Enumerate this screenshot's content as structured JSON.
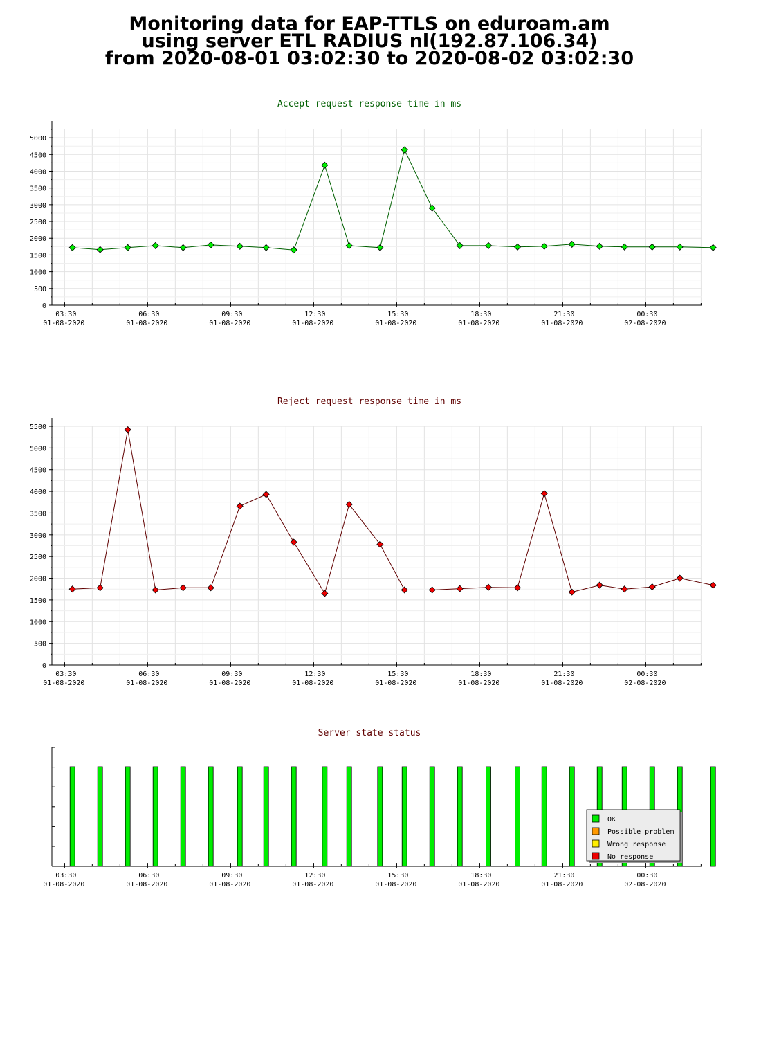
{
  "page_title": {
    "line1": "Monitoring data for EAP-TTLS on eduroam.am",
    "line2": "using server ETL RADIUS nl(192.87.106.34)",
    "line3": "from 2020-08-01 03:02:30 to 2020-08-02 03:02:30"
  },
  "x_axis": {
    "ticks": [
      {
        "time": "03:30",
        "date": "01-08-2020"
      },
      {
        "time": "06:30",
        "date": "01-08-2020"
      },
      {
        "time": "09:30",
        "date": "01-08-2020"
      },
      {
        "time": "12:30",
        "date": "01-08-2020"
      },
      {
        "time": "15:30",
        "date": "01-08-2020"
      },
      {
        "time": "18:30",
        "date": "01-08-2020"
      },
      {
        "time": "21:30",
        "date": "01-08-2020"
      },
      {
        "time": "00:30",
        "date": "02-08-2020"
      }
    ]
  },
  "chart_data": [
    {
      "type": "line",
      "title": "Accept request response time in ms",
      "ylim": [
        0,
        5250
      ],
      "yticks": [
        0,
        500,
        1000,
        1500,
        2000,
        2500,
        3000,
        3500,
        4000,
        4500,
        5000
      ],
      "grid": true,
      "line_color": "#006000",
      "marker_color": "#00ee00",
      "title_color": "#005f00",
      "x": [
        "2020-08-01 03:47",
        "2020-08-01 04:47",
        "2020-08-01 05:47",
        "2020-08-01 06:47",
        "2020-08-01 07:47",
        "2020-08-01 08:47",
        "2020-08-01 09:50",
        "2020-08-01 10:47",
        "2020-08-01 11:47",
        "2020-08-01 12:54",
        "2020-08-01 13:47",
        "2020-08-01 14:54",
        "2020-08-01 15:47",
        "2020-08-01 16:47",
        "2020-08-01 17:47",
        "2020-08-01 18:49",
        "2020-08-01 19:52",
        "2020-08-01 20:50",
        "2020-08-01 21:50",
        "2020-08-01 22:50",
        "2020-08-01 23:44",
        "2020-08-02 00:44",
        "2020-08-02 01:44",
        "2020-08-02 02:56"
      ],
      "values": [
        1720,
        1660,
        1720,
        1780,
        1720,
        1800,
        1760,
        1720,
        1650,
        4180,
        1780,
        1720,
        4640,
        2900,
        1780,
        1780,
        1740,
        1760,
        1820,
        1760,
        1740,
        1740,
        1740,
        1720
      ]
    },
    {
      "type": "line",
      "title": "Reject request response time in ms",
      "ylim": [
        0,
        5500
      ],
      "yticks": [
        0,
        500,
        1000,
        1500,
        2000,
        2500,
        3000,
        3500,
        4000,
        4500,
        5000,
        5500
      ],
      "grid": true,
      "line_color": "#600000",
      "marker_color": "#ee0000",
      "title_color": "#600000",
      "x": [
        "2020-08-01 03:47",
        "2020-08-01 04:47",
        "2020-08-01 05:47",
        "2020-08-01 06:47",
        "2020-08-01 07:47",
        "2020-08-01 08:47",
        "2020-08-01 09:50",
        "2020-08-01 10:47",
        "2020-08-01 11:47",
        "2020-08-01 12:54",
        "2020-08-01 13:47",
        "2020-08-01 14:54",
        "2020-08-01 15:47",
        "2020-08-01 16:47",
        "2020-08-01 17:47",
        "2020-08-01 18:49",
        "2020-08-01 19:52",
        "2020-08-01 20:50",
        "2020-08-01 21:50",
        "2020-08-01 22:50",
        "2020-08-01 23:44",
        "2020-08-02 00:44",
        "2020-08-02 01:44",
        "2020-08-02 02:56"
      ],
      "values": [
        1750,
        1780,
        5420,
        1730,
        1780,
        1780,
        3660,
        3930,
        2830,
        1650,
        3700,
        2780,
        1730,
        1730,
        1760,
        1790,
        1780,
        3950,
        1680,
        1840,
        1750,
        1800,
        2000,
        1840
      ]
    },
    {
      "type": "bar",
      "title": "Server state status",
      "title_color": "#600000",
      "grid": false,
      "x": [
        "2020-08-01 03:47",
        "2020-08-01 04:47",
        "2020-08-01 05:47",
        "2020-08-01 06:47",
        "2020-08-01 07:47",
        "2020-08-01 08:47",
        "2020-08-01 09:50",
        "2020-08-01 10:47",
        "2020-08-01 11:47",
        "2020-08-01 12:54",
        "2020-08-01 13:47",
        "2020-08-01 14:54",
        "2020-08-01 15:47",
        "2020-08-01 16:47",
        "2020-08-01 17:47",
        "2020-08-01 18:49",
        "2020-08-01 19:52",
        "2020-08-01 20:50",
        "2020-08-01 21:50",
        "2020-08-01 22:50",
        "2020-08-01 23:44",
        "2020-08-02 00:44",
        "2020-08-02 01:44",
        "2020-08-02 02:56"
      ],
      "states": [
        "OK",
        "OK",
        "OK",
        "OK",
        "OK",
        "OK",
        "OK",
        "OK",
        "OK",
        "OK",
        "OK",
        "OK",
        "OK",
        "OK",
        "OK",
        "OK",
        "OK",
        "OK",
        "OK",
        "OK",
        "OK",
        "OK",
        "OK",
        "OK"
      ],
      "legend_placement": "bottom-right",
      "legend": [
        {
          "label": "OK",
          "color": "#00ee00"
        },
        {
          "label": "Possible problem",
          "color": "#ff9900"
        },
        {
          "label": "Wrong response",
          "color": "#ffee00"
        },
        {
          "label": "No response",
          "color": "#ee0000"
        }
      ]
    }
  ]
}
